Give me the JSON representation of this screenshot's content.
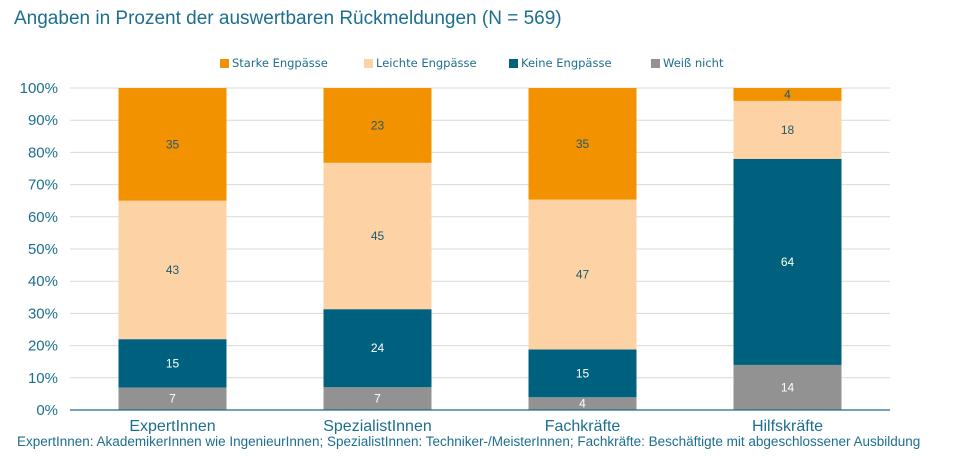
{
  "chart_data": {
    "type": "stacked-bar",
    "title": "Angaben in Prozent der auswertbaren Rückmeldungen (N = 569)",
    "categories": [
      "ExpertInnen",
      "SpezialistInnen",
      "Fachkräfte",
      "Hilfskräfte"
    ],
    "series": [
      {
        "name": "Weiß nicht",
        "color": "#929292",
        "values": [
          7,
          7,
          4,
          14
        ]
      },
      {
        "name": "Keine Engpässe",
        "color": "#00617f",
        "values": [
          15,
          24,
          15,
          64
        ]
      },
      {
        "name": "Leichte Engpässe",
        "color": "#fdd3a6",
        "values": [
          43,
          45,
          47,
          18
        ]
      },
      {
        "name": "Starke Engpässe",
        "color": "#f39200",
        "values": [
          35,
          23,
          35,
          4
        ]
      }
    ],
    "legend_order": [
      "Starke Engpässe",
      "Leichte Engpässe",
      "Keine Engpässe",
      "Weiß nicht"
    ],
    "yticks": [
      "0%",
      "10%",
      "20%",
      "30%",
      "40%",
      "50%",
      "60%",
      "70%",
      "80%",
      "90%",
      "100%"
    ],
    "ylim": [
      0,
      100
    ],
    "grid": true,
    "legend_position": "top"
  },
  "footnote": "ExpertInnen: AkademikerInnen wie IngenieurInnen; SpezialistInnen: Techniker-/MeisterInnen; Fachkräfte: Beschäftigte mit abgeschlossener Ausbildung"
}
